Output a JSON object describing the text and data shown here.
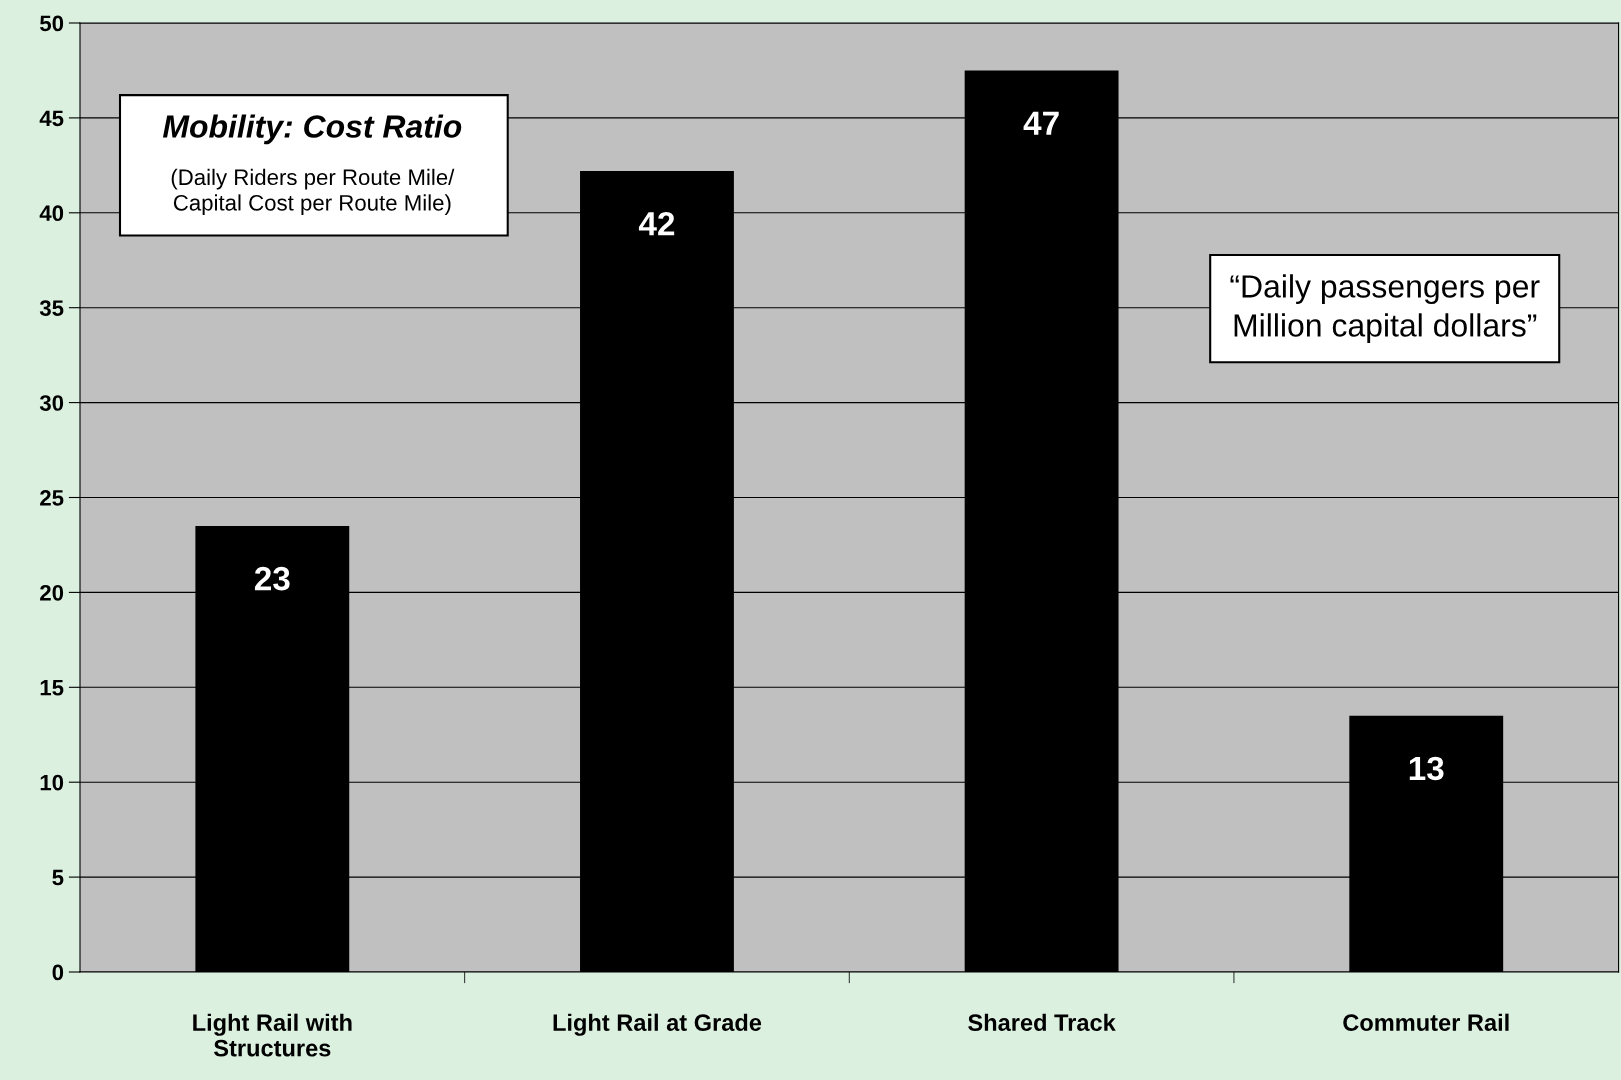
{
  "chart_data": {
    "type": "bar",
    "title": "Mobility: Cost Ratio",
    "subtitle": "(Daily Riders per Route Mile/\nCapital Cost per Route Mile)",
    "annotations": [
      "“Daily passengers per\nMillion capital dollars”"
    ],
    "categories": [
      "Light Rail with\nStructures",
      "Light Rail at Grade",
      "Shared Track",
      "Commuter Rail"
    ],
    "values": [
      23.5,
      42.2,
      47.5,
      13.5
    ],
    "value_labels": [
      "23",
      "42",
      "47",
      "13"
    ],
    "color": "#000000",
    "ylim": [
      0,
      50
    ],
    "yticks": [
      0,
      5,
      10,
      15,
      20,
      25,
      30,
      35,
      40,
      45,
      50
    ],
    "grid": "y",
    "legend": false
  }
}
